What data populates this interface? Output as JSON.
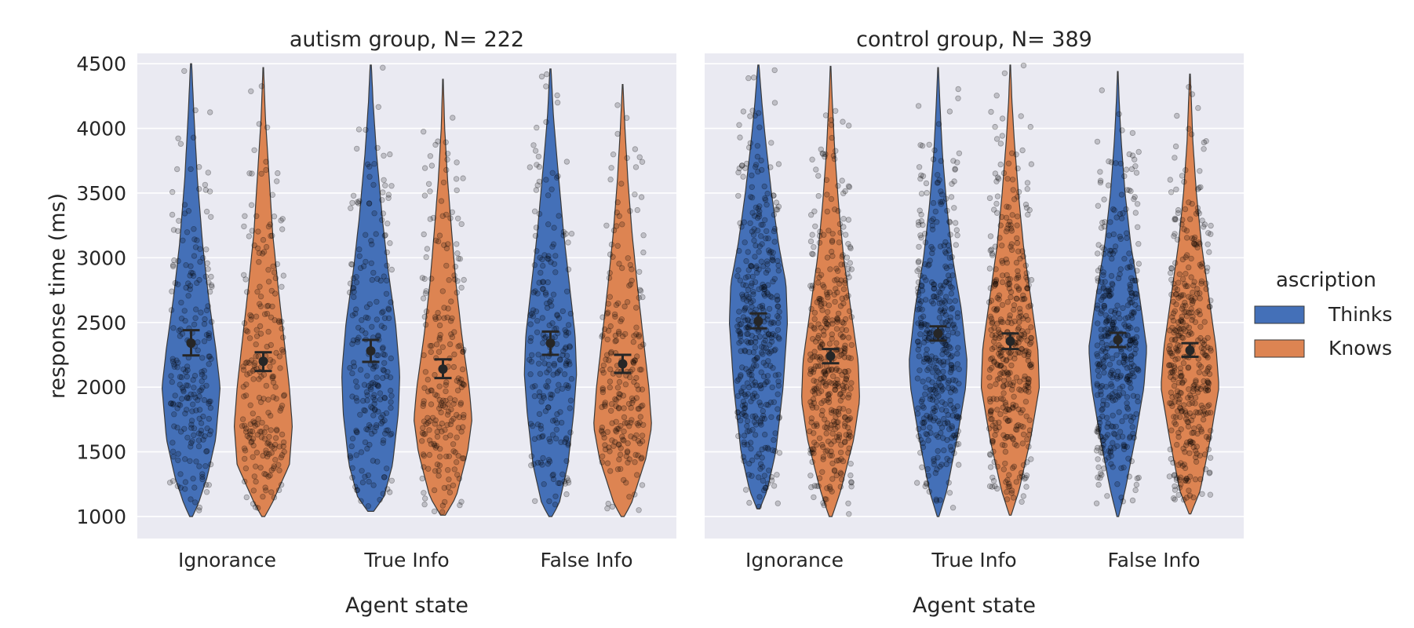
{
  "chart_data": [
    {
      "type": "violin",
      "title": "autism group, N= 222",
      "xlabel": "Agent state",
      "ylabel": "response time (ms)",
      "ylim": [
        830,
        4580
      ],
      "yticks": [
        1000,
        1500,
        2000,
        2500,
        3000,
        3500,
        4000,
        4500
      ],
      "categories": [
        "Ignorance",
        "True Info",
        "False Info"
      ],
      "grid": true,
      "series": [
        {
          "name": "Thinks",
          "groups": [
            {
              "category": "Ignorance",
              "min": 1000,
              "max": 4500,
              "mean": 2340,
              "ci": [
                2245,
                2440
              ],
              "n": 222,
              "profile": [
                [
                  1000,
                  0.05
                ],
                [
                  1100,
                  0.25
                ],
                [
                  1300,
                  0.55
                ],
                [
                  1600,
                  0.85
                ],
                [
                  2000,
                  1.0
                ],
                [
                  2300,
                  0.85
                ],
                [
                  2700,
                  0.6
                ],
                [
                  3100,
                  0.4
                ],
                [
                  3600,
                  0.22
                ],
                [
                  4100,
                  0.1
                ],
                [
                  4500,
                  0.02
                ]
              ]
            },
            {
              "category": "True Info",
              "min": 1040,
              "max": 4490,
              "mean": 2280,
              "ci": [
                2195,
                2365
              ],
              "n": 222,
              "profile": [
                [
                  1040,
                  0.1
                ],
                [
                  1150,
                  0.45
                ],
                [
                  1400,
                  0.75
                ],
                [
                  1800,
                  0.95
                ],
                [
                  2100,
                  1.0
                ],
                [
                  2500,
                  0.85
                ],
                [
                  2900,
                  0.6
                ],
                [
                  3300,
                  0.4
                ],
                [
                  3800,
                  0.2
                ],
                [
                  4200,
                  0.08
                ],
                [
                  4490,
                  0.02
                ]
              ]
            },
            {
              "category": "False Info",
              "min": 1000,
              "max": 4460,
              "mean": 2340,
              "ci": [
                2250,
                2430
              ],
              "n": 222,
              "profile": [
                [
                  1000,
                  0.05
                ],
                [
                  1100,
                  0.3
                ],
                [
                  1400,
                  0.6
                ],
                [
                  1800,
                  0.8
                ],
                [
                  2100,
                  0.9
                ],
                [
                  2400,
                  0.85
                ],
                [
                  2800,
                  0.65
                ],
                [
                  3200,
                  0.45
                ],
                [
                  3700,
                  0.25
                ],
                [
                  4100,
                  0.1
                ],
                [
                  4460,
                  0.02
                ]
              ]
            }
          ]
        },
        {
          "name": "Knows",
          "groups": [
            {
              "category": "Ignorance",
              "min": 1000,
              "max": 4470,
              "mean": 2200,
              "ci": [
                2125,
                2270
              ],
              "n": 222,
              "profile": [
                [
                  1000,
                  0.05
                ],
                [
                  1100,
                  0.3
                ],
                [
                  1400,
                  0.9
                ],
                [
                  1700,
                  1.0
                ],
                [
                  2000,
                  0.9
                ],
                [
                  2400,
                  0.7
                ],
                [
                  2800,
                  0.5
                ],
                [
                  3200,
                  0.32
                ],
                [
                  3700,
                  0.18
                ],
                [
                  4100,
                  0.07
                ],
                [
                  4470,
                  0.01
                ]
              ]
            },
            {
              "category": "True Info",
              "min": 1010,
              "max": 4380,
              "mean": 2140,
              "ci": [
                2070,
                2215
              ],
              "n": 222,
              "profile": [
                [
                  1010,
                  0.08
                ],
                [
                  1150,
                  0.45
                ],
                [
                  1500,
                  0.85
                ],
                [
                  1750,
                  1.0
                ],
                [
                  2000,
                  0.9
                ],
                [
                  2400,
                  0.65
                ],
                [
                  2800,
                  0.45
                ],
                [
                  3200,
                  0.3
                ],
                [
                  3600,
                  0.16
                ],
                [
                  4000,
                  0.06
                ],
                [
                  4380,
                  0.01
                ]
              ]
            },
            {
              "category": "False Info",
              "min": 1000,
              "max": 4340,
              "mean": 2180,
              "ci": [
                2110,
                2250
              ],
              "n": 222,
              "profile": [
                [
                  1000,
                  0.05
                ],
                [
                  1100,
                  0.3
                ],
                [
                  1450,
                  0.8
                ],
                [
                  1700,
                  1.0
                ],
                [
                  2000,
                  0.9
                ],
                [
                  2400,
                  0.7
                ],
                [
                  2800,
                  0.5
                ],
                [
                  3200,
                  0.32
                ],
                [
                  3600,
                  0.18
                ],
                [
                  4000,
                  0.08
                ],
                [
                  4340,
                  0.01
                ]
              ]
            }
          ]
        }
      ]
    },
    {
      "type": "violin",
      "title": "control group, N= 389",
      "xlabel": "Agent state",
      "ylabel": "",
      "ylim": [
        830,
        4580
      ],
      "yticks": [
        1000,
        1500,
        2000,
        2500,
        3000,
        3500,
        4000,
        4500
      ],
      "categories": [
        "Ignorance",
        "True Info",
        "False Info"
      ],
      "grid": true,
      "series": [
        {
          "name": "Thinks",
          "groups": [
            {
              "category": "Ignorance",
              "min": 1060,
              "max": 4490,
              "mean": 2510,
              "ci": [
                2455,
                2570
              ],
              "n": 389,
              "profile": [
                [
                  1060,
                  0.05
                ],
                [
                  1200,
                  0.3
                ],
                [
                  1500,
                  0.6
                ],
                [
                  2000,
                  0.85
                ],
                [
                  2500,
                  1.0
                ],
                [
                  2800,
                  0.95
                ],
                [
                  3100,
                  0.7
                ],
                [
                  3500,
                  0.45
                ],
                [
                  3900,
                  0.25
                ],
                [
                  4200,
                  0.12
                ],
                [
                  4490,
                  0.02
                ]
              ]
            },
            {
              "category": "True Info",
              "min": 1000,
              "max": 4470,
              "mean": 2415,
              "ci": [
                2360,
                2470
              ],
              "n": 389,
              "profile": [
                [
                  1000,
                  0.03
                ],
                [
                  1200,
                  0.3
                ],
                [
                  1600,
                  0.65
                ],
                [
                  2000,
                  0.95
                ],
                [
                  2200,
                  1.0
                ],
                [
                  2600,
                  0.8
                ],
                [
                  3000,
                  0.5
                ],
                [
                  3400,
                  0.3
                ],
                [
                  3800,
                  0.15
                ],
                [
                  4200,
                  0.06
                ],
                [
                  4470,
                  0.01
                ]
              ]
            },
            {
              "category": "False Info",
              "min": 1000,
              "max": 4440,
              "mean": 2365,
              "ci": [
                2310,
                2420
              ],
              "n": 389,
              "profile": [
                [
                  1000,
                  0.03
                ],
                [
                  1200,
                  0.25
                ],
                [
                  1600,
                  0.6
                ],
                [
                  2000,
                  0.9
                ],
                [
                  2300,
                  1.0
                ],
                [
                  2700,
                  0.75
                ],
                [
                  3100,
                  0.45
                ],
                [
                  3500,
                  0.25
                ],
                [
                  3900,
                  0.12
                ],
                [
                  4200,
                  0.05
                ],
                [
                  4440,
                  0.01
                ]
              ]
            }
          ]
        },
        {
          "name": "Knows",
          "groups": [
            {
              "category": "Ignorance",
              "min": 1000,
              "max": 4480,
              "mean": 2240,
              "ci": [
                2185,
                2295
              ],
              "n": 389,
              "profile": [
                [
                  1000,
                  0.05
                ],
                [
                  1200,
                  0.35
                ],
                [
                  1600,
                  0.8
                ],
                [
                  1900,
                  1.0
                ],
                [
                  2200,
                  0.95
                ],
                [
                  2600,
                  0.7
                ],
                [
                  3000,
                  0.45
                ],
                [
                  3400,
                  0.28
                ],
                [
                  3800,
                  0.15
                ],
                [
                  4200,
                  0.06
                ],
                [
                  4480,
                  0.01
                ]
              ]
            },
            {
              "category": "True Info",
              "min": 1010,
              "max": 4490,
              "mean": 2355,
              "ci": [
                2295,
                2415
              ],
              "n": 389,
              "profile": [
                [
                  1010,
                  0.03
                ],
                [
                  1200,
                  0.3
                ],
                [
                  1600,
                  0.7
                ],
                [
                  2000,
                  1.0
                ],
                [
                  2300,
                  0.95
                ],
                [
                  2700,
                  0.7
                ],
                [
                  3100,
                  0.45
                ],
                [
                  3500,
                  0.28
                ],
                [
                  3900,
                  0.14
                ],
                [
                  4200,
                  0.06
                ],
                [
                  4490,
                  0.01
                ]
              ]
            },
            {
              "category": "False Info",
              "min": 1020,
              "max": 4420,
              "mean": 2285,
              "ci": [
                2235,
                2340
              ],
              "n": 389,
              "profile": [
                [
                  1020,
                  0.03
                ],
                [
                  1200,
                  0.35
                ],
                [
                  1600,
                  0.7
                ],
                [
                  2000,
                  1.0
                ],
                [
                  2300,
                  0.9
                ],
                [
                  2700,
                  0.65
                ],
                [
                  3100,
                  0.4
                ],
                [
                  3500,
                  0.22
                ],
                [
                  3900,
                  0.1
                ],
                [
                  4200,
                  0.05
                ],
                [
                  4420,
                  0.01
                ]
              ]
            }
          ]
        }
      ]
    }
  ],
  "legend": {
    "title": "ascription",
    "placement": "right",
    "items": [
      {
        "label": "Thinks",
        "color": "#4470b8"
      },
      {
        "label": "Knows",
        "color": "#dd8452"
      }
    ]
  },
  "colors": {
    "panel_bg": "#eaeaf2",
    "grid": "#ffffff",
    "violin_edge": "#3a3a3a",
    "points": "#000000",
    "mean_marker": "#262626"
  }
}
